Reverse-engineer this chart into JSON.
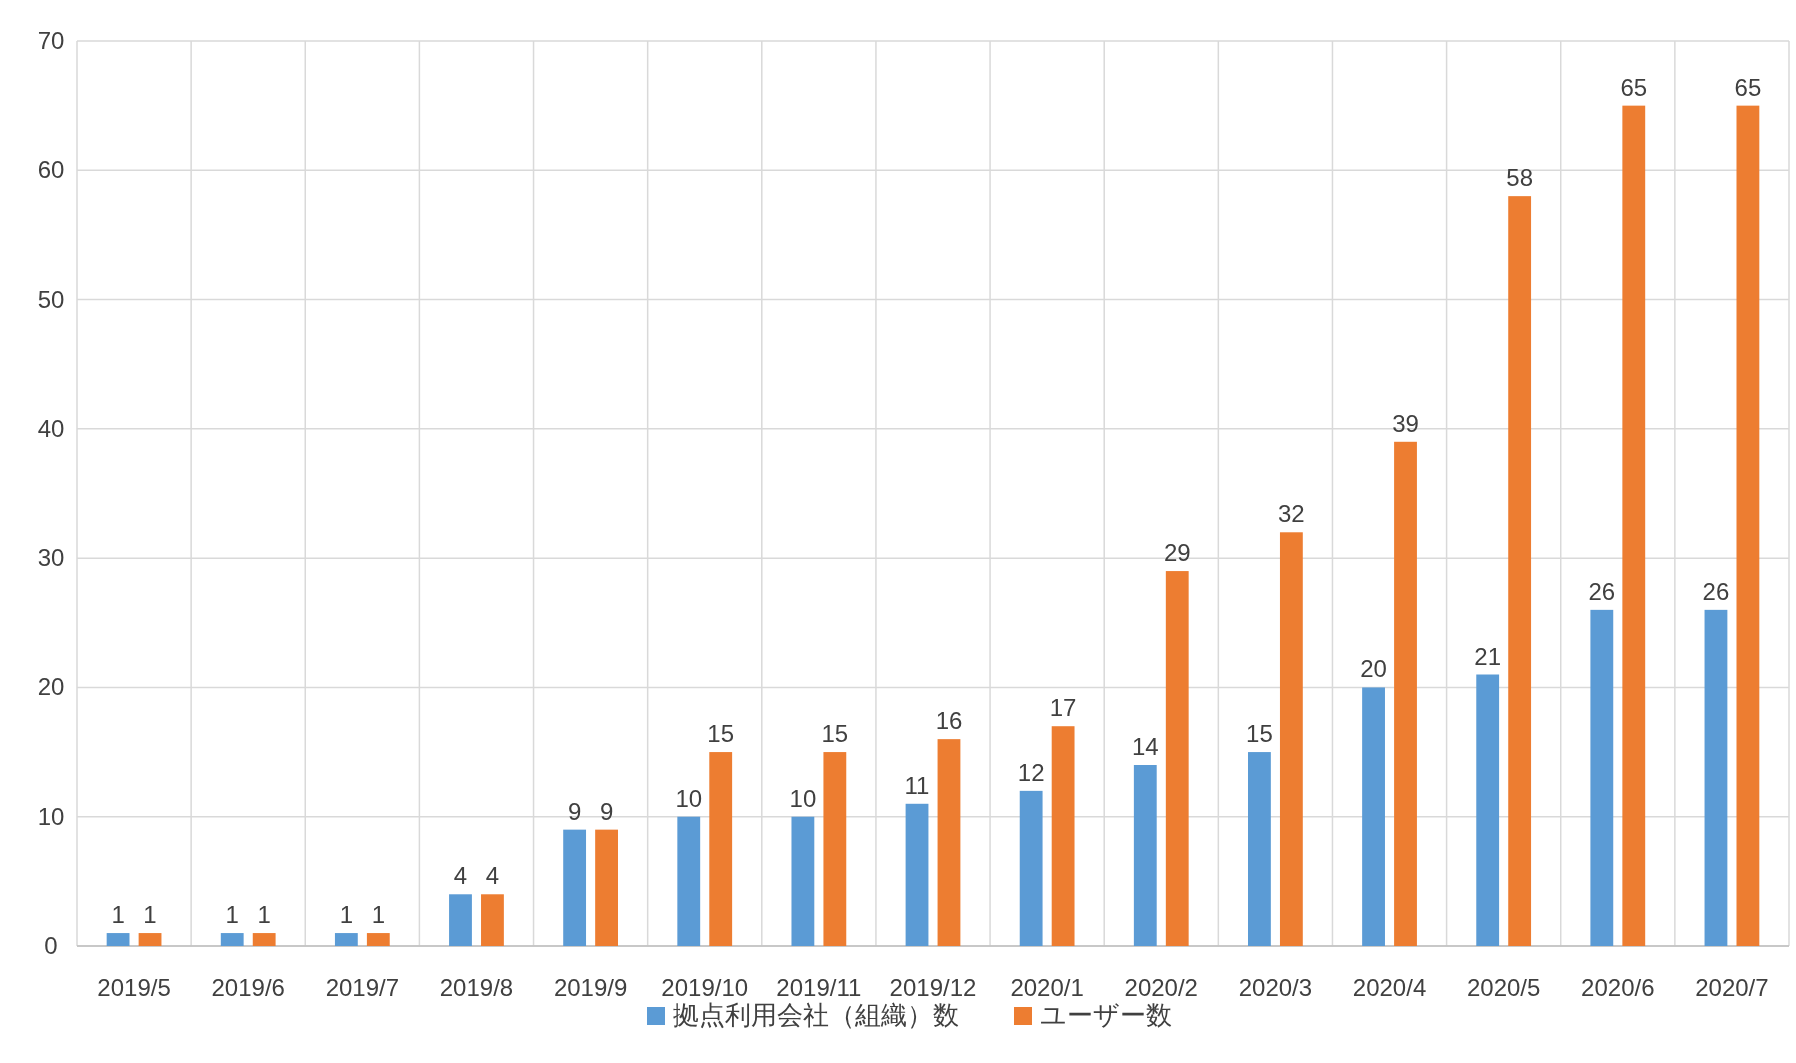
{
  "chart_data": {
    "type": "bar",
    "categories": [
      "2019/5",
      "2019/6",
      "2019/7",
      "2019/8",
      "2019/9",
      "2019/10",
      "2019/11",
      "2019/12",
      "2020/1",
      "2020/2",
      "2020/3",
      "2020/4",
      "2020/5",
      "2020/6",
      "2020/7"
    ],
    "series": [
      {
        "name": "拠点利用会社（組織）数",
        "color": "#5b9bd5",
        "values": [
          1,
          1,
          1,
          4,
          9,
          10,
          10,
          11,
          12,
          14,
          15,
          20,
          21,
          26,
          26
        ]
      },
      {
        "name": "ユーザー数",
        "color": "#ed7d31",
        "values": [
          1,
          1,
          1,
          4,
          9,
          15,
          15,
          16,
          17,
          29,
          32,
          39,
          58,
          65,
          65
        ]
      }
    ],
    "ylim": [
      0,
      70
    ],
    "yticks": [
      0,
      10,
      20,
      30,
      40,
      50,
      60,
      70
    ],
    "grid": true,
    "legend": "bottom",
    "data_labels": true
  }
}
